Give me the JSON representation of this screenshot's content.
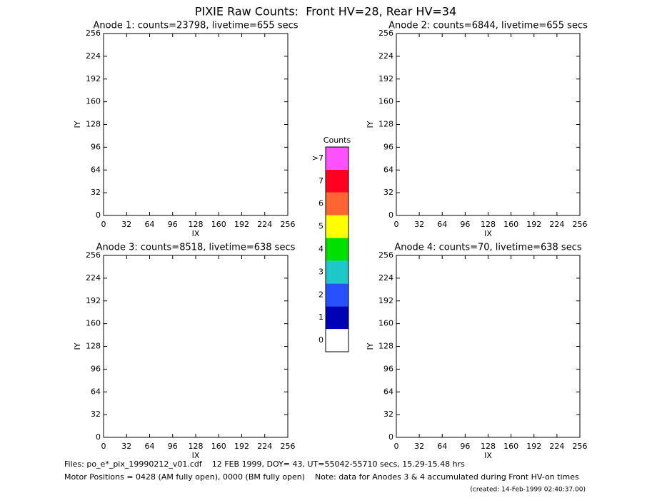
{
  "title": "PIXIE Raw Counts:  Front HV=28, Rear HV=34",
  "chart_data": [
    {
      "type": "heatmap",
      "title": "Anode 1: counts=23798, livetime=655 secs",
      "x_label": "IX",
      "y_label": "IY",
      "xlim": [
        0,
        256
      ],
      "ylim": [
        0,
        256
      ],
      "xticks": [
        0,
        32,
        64,
        96,
        128,
        160,
        192,
        224,
        256
      ],
      "yticks": [
        0,
        32,
        64,
        96,
        128,
        160,
        192,
        224,
        256
      ]
    },
    {
      "type": "heatmap",
      "title": "Anode 2: counts=6844, livetime=655 secs",
      "x_label": "IX",
      "y_label": "IY",
      "xlim": [
        0,
        256
      ],
      "ylim": [
        0,
        256
      ],
      "xticks": [
        0,
        32,
        64,
        96,
        128,
        160,
        192,
        224,
        256
      ],
      "yticks": [
        0,
        32,
        64,
        96,
        128,
        160,
        192,
        224,
        256
      ]
    },
    {
      "type": "heatmap",
      "title": "Anode 3: counts=8518, livetime=638 secs",
      "x_label": "IX",
      "y_label": "IY",
      "xlim": [
        0,
        256
      ],
      "ylim": [
        0,
        256
      ],
      "xticks": [
        0,
        32,
        64,
        96,
        128,
        160,
        192,
        224,
        256
      ],
      "yticks": [
        0,
        32,
        64,
        96,
        128,
        160,
        192,
        224,
        256
      ]
    },
    {
      "type": "heatmap",
      "title": "Anode 4: counts=70, livetime=638 secs",
      "x_label": "IX",
      "y_label": "IY",
      "xlim": [
        0,
        256
      ],
      "ylim": [
        0,
        256
      ],
      "xticks": [
        0,
        32,
        64,
        96,
        128,
        160,
        192,
        224,
        256
      ],
      "yticks": [
        0,
        32,
        64,
        96,
        128,
        160,
        192,
        224,
        256
      ]
    }
  ],
  "colorbar": {
    "title": "Counts",
    "levels": [
      {
        "label": "0",
        "color": "#ffffff"
      },
      {
        "label": "1",
        "color": "#0000b4"
      },
      {
        "label": "2",
        "color": "#2850ff"
      },
      {
        "label": "3",
        "color": "#1ec8c8"
      },
      {
        "label": "4",
        "color": "#00e000"
      },
      {
        "label": "5",
        "color": "#ffff00"
      },
      {
        "label": "6",
        "color": "#ff6432"
      },
      {
        "label": "7",
        "color": "#ff0020"
      },
      {
        "label": ">7",
        "color": "#ff50ff"
      }
    ]
  },
  "footer": {
    "files": "Files: po_e*_pix_19990212_v01.cdf    12 FEB 1999, DOY= 43, UT=55042-55710 secs, 15.29-15.48 hrs",
    "motor": "Motor Positions = 0428 (AM fully open), 0000 (BM fully open)    Note: data for Anodes 3 & 4 accumulated during Front HV-on times",
    "created": "(created: 14-Feb-1999 02:40:37.00)"
  }
}
